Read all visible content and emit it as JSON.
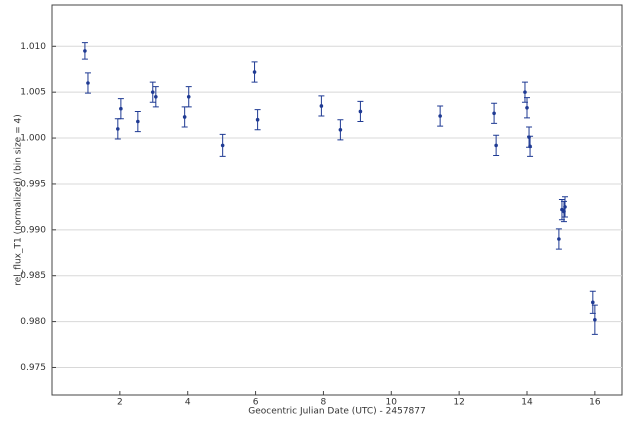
{
  "chart_data": {
    "type": "scatter",
    "x_label": "Geocentric Julian Date (UTC) - 2457877",
    "y_label": "rel_flux_T1 (normalized) (bin size = 4)",
    "xlim": [
      0,
      16.8
    ],
    "ylim": [
      0.972,
      1.0145
    ],
    "xticks": [
      2,
      4,
      6,
      8,
      10,
      12,
      14,
      16
    ],
    "yticks": [
      {
        "value": 0.975,
        "label": "0.975"
      },
      {
        "value": 0.98,
        "label": "0.980"
      },
      {
        "value": 0.985,
        "label": "0.985"
      },
      {
        "value": 0.99,
        "label": "0.990"
      },
      {
        "value": 0.995,
        "label": "0.995"
      },
      {
        "value": 1.0,
        "label": "1.000"
      },
      {
        "value": 1.005,
        "label": "1.005"
      },
      {
        "value": 1.01,
        "label": "1.010"
      }
    ],
    "grid": true,
    "series": [
      {
        "color": "#1f3a93",
        "x": [
          0.97,
          1.06,
          1.94,
          2.03,
          2.53,
          2.97,
          3.06,
          3.91,
          4.03,
          5.03,
          5.97,
          6.06,
          7.94,
          8.5,
          9.09,
          11.44,
          13.03,
          13.09,
          13.94,
          14.0,
          14.06,
          14.09,
          14.94,
          15.03,
          15.09,
          15.12,
          15.94,
          16.0
        ],
        "y": [
          1.0095,
          1.006,
          1.001,
          1.0032,
          1.0018,
          1.005,
          1.0045,
          1.0023,
          1.0045,
          0.9992,
          1.0072,
          1.002,
          1.0035,
          1.0009,
          1.0029,
          1.0024,
          1.0027,
          0.9992,
          1.005,
          1.0033,
          1.0001,
          0.9991,
          0.989,
          0.9922,
          0.992,
          0.9925,
          0.9821,
          0.9802
        ],
        "errors": [
          0.0009,
          0.0011,
          0.0011,
          0.0011,
          0.0011,
          0.0011,
          0.0011,
          0.0011,
          0.0011,
          0.0012,
          0.0011,
          0.0011,
          0.0011,
          0.0011,
          0.0011,
          0.0011,
          0.0011,
          0.0011,
          0.0011,
          0.0011,
          0.0011,
          0.0011,
          0.0011,
          0.0011,
          0.0011,
          0.0011,
          0.0012,
          0.0016
        ]
      }
    ]
  }
}
